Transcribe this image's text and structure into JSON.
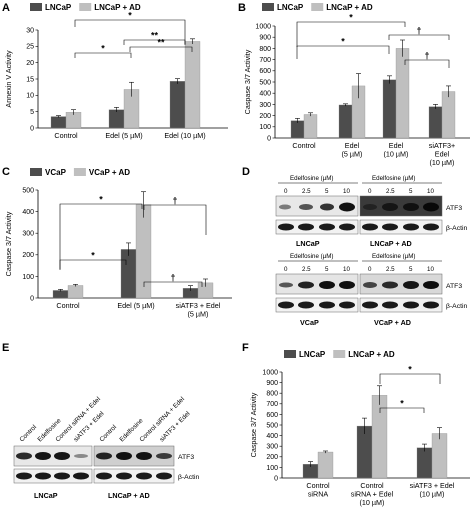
{
  "chart_data": [
    {
      "panel": "A",
      "type": "bar",
      "ylabel": "Annexin V Activity",
      "ylim": [
        0,
        30
      ],
      "yticks": [
        0,
        5,
        10,
        15,
        20,
        25,
        30
      ],
      "categories": [
        "Control",
        "Edel (5 µM)",
        "Edel (10 µM)"
      ],
      "series": [
        {
          "name": "LNCaP",
          "color": "#4d4d4d",
          "values": [
            3.5,
            5.6,
            14.3
          ],
          "errors": [
            0.3,
            0.7,
            0.8
          ]
        },
        {
          "name": "LNCaP + AD",
          "color": "#bfbfbf",
          "values": [
            4.8,
            11.8,
            26.5
          ],
          "errors": [
            0.8,
            2.2,
            0.8
          ]
        }
      ],
      "annotations": [
        "*",
        "*",
        "**",
        "**"
      ]
    },
    {
      "panel": "B",
      "type": "bar",
      "ylabel": "Caspase 3/7 Activity",
      "ylim": [
        0,
        1000
      ],
      "yticks": [
        0,
        100,
        200,
        300,
        400,
        500,
        600,
        700,
        800,
        900,
        1000
      ],
      "categories": [
        "Control",
        "Edel (5 µM)",
        "Edel (10 µM)",
        "siATF3+ Edel (10 µM)"
      ],
      "series": [
        {
          "name": "LNCaP",
          "color": "#4d4d4d",
          "values": [
            155,
            295,
            520,
            280
          ],
          "errors": [
            20,
            10,
            35,
            20
          ]
        },
        {
          "name": "LNCaP + AD",
          "color": "#bfbfbf",
          "values": [
            210,
            465,
            800,
            415
          ],
          "errors": [
            15,
            110,
            75,
            50
          ]
        }
      ],
      "annotations": [
        "*",
        "*",
        "†",
        "†"
      ]
    },
    {
      "panel": "C",
      "type": "bar",
      "ylabel": "Caspase 3/7 Activity",
      "ylim": [
        0,
        500
      ],
      "yticks": [
        0,
        100,
        200,
        300,
        400,
        500
      ],
      "categories": [
        "Control",
        "Edel (5 µM)",
        "siATF3 + Edel (5 µM)"
      ],
      "series": [
        {
          "name": "VCaP",
          "color": "#4d4d4d",
          "values": [
            35,
            225,
            45
          ],
          "errors": [
            5,
            30,
            12
          ]
        },
        {
          "name": "VCaP + AD",
          "color": "#bfbfbf",
          "values": [
            58,
            432,
            70
          ],
          "errors": [
            5,
            60,
            18
          ]
        }
      ],
      "annotations": [
        "*",
        "*",
        "†",
        "†"
      ]
    },
    {
      "panel": "F",
      "type": "bar",
      "ylabel": "Caspase 3/7 Activity",
      "ylim": [
        0,
        1000
      ],
      "yticks": [
        0,
        100,
        200,
        300,
        400,
        500,
        600,
        700,
        800,
        900,
        1000
      ],
      "categories": [
        "Control siRNA",
        "Control siRNA + Edel (10 µM)",
        "siATF3 + Edel (10 µM)"
      ],
      "series": [
        {
          "name": "LNCaP",
          "color": "#4d4d4d",
          "values": [
            130,
            490,
            285
          ],
          "errors": [
            25,
            75,
            35
          ]
        },
        {
          "name": "LNCaP + AD",
          "color": "#bfbfbf",
          "values": [
            245,
            780,
            420
          ],
          "errors": [
            10,
            90,
            55
          ]
        }
      ],
      "annotations": [
        "*",
        "*"
      ]
    }
  ],
  "panels": {
    "A": {
      "letter": "A"
    },
    "B": {
      "letter": "B"
    },
    "C": {
      "letter": "C"
    },
    "D": {
      "letter": "D",
      "drug": "Edelfosine (µM)",
      "doses": [
        "0",
        "2.5",
        "5",
        "10"
      ],
      "atf3": "ATF3",
      "actin": "β-Actin",
      "lncap": "LNCaP",
      "lncap_ad": "LNCaP + AD",
      "vcap": "VCaP",
      "vcap_ad": "VCaP + AD"
    },
    "E": {
      "letter": "E",
      "lanes": [
        "Control",
        "Edelfosine",
        "Control siRNA + Edel",
        "siATF3 + Edel"
      ],
      "atf3": "ATF3",
      "actin": "β-Actin",
      "lncap": "LNCaP",
      "lncap_ad": "LNCaP + AD"
    },
    "F": {
      "letter": "F",
      "xcat1_l1": "Control",
      "xcat1_l2": "siRNA"
    }
  }
}
